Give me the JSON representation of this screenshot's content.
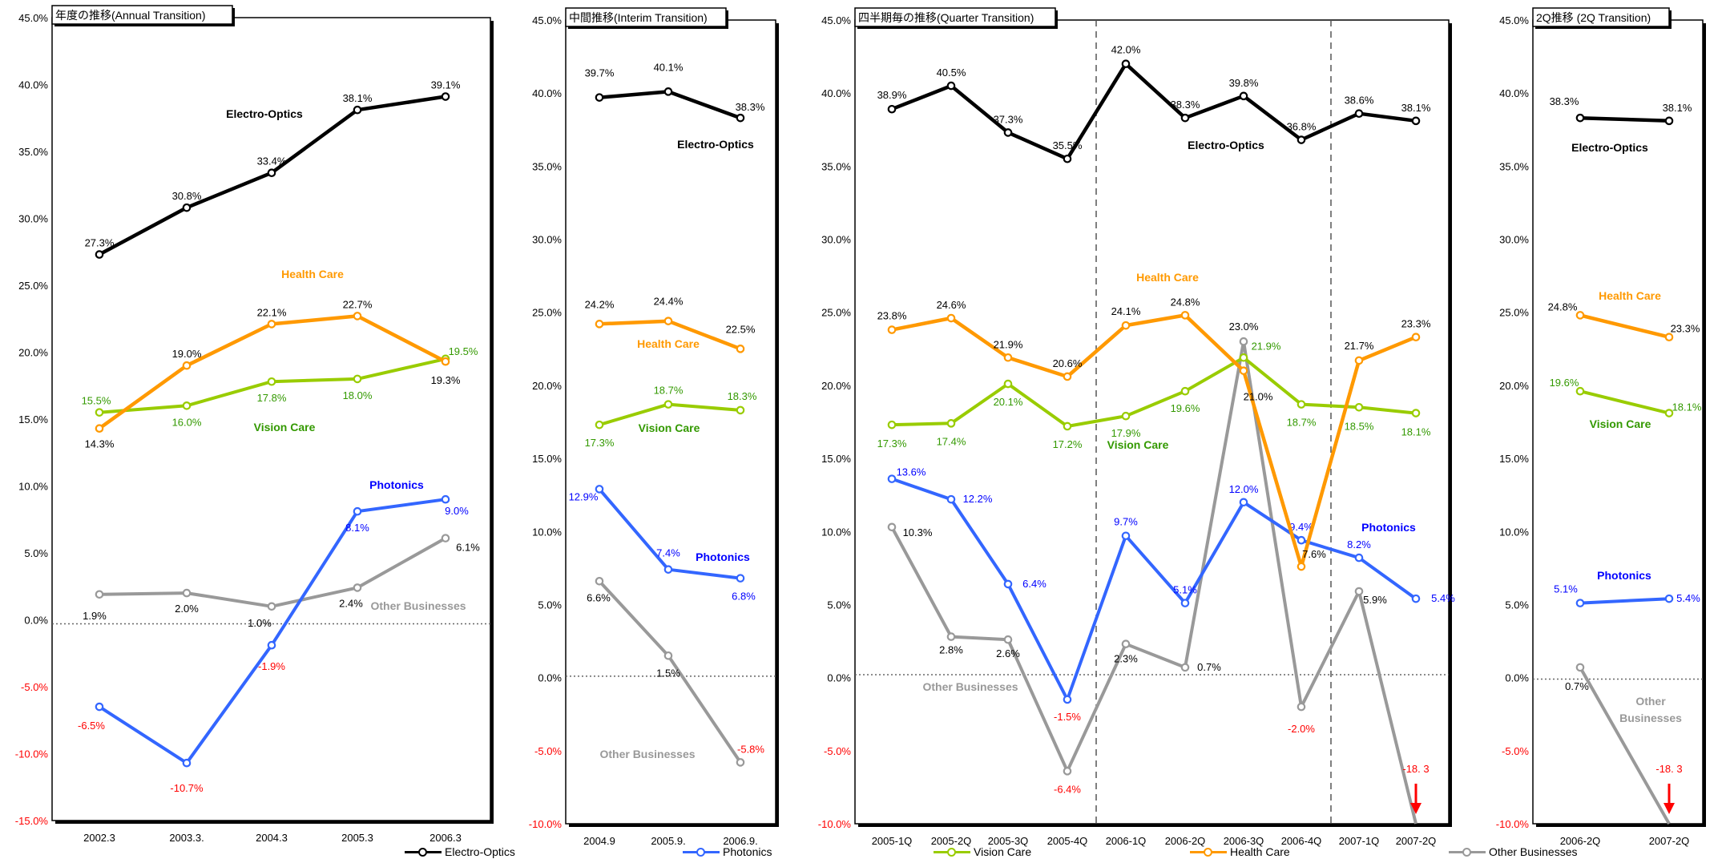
{
  "legend": [
    {
      "name": "Electro-Optics",
      "color": "#000000"
    },
    {
      "name": "Photonics",
      "color": "#3366ff"
    },
    {
      "name": "Vision Care",
      "color": "#99cc00"
    },
    {
      "name": "Health Care",
      "color": "#ff9900"
    },
    {
      "name": "Other Businesses",
      "color": "#999999"
    }
  ],
  "chart_data": [
    {
      "type": "line",
      "title": "年度の推移(Annual Transition)",
      "categories": [
        "2002.3",
        "2003.3.",
        "2004.3",
        "2005.3",
        "2006.3"
      ],
      "ylim": [
        -15,
        45
      ],
      "yticks": [
        "-15.0%",
        "-10.0%",
        "-5.0%",
        "0.0%",
        "5.0%",
        "10.0%",
        "15.0%",
        "20.0%",
        "25.0%",
        "30.0%",
        "35.0%",
        "40.0%",
        "45.0%"
      ],
      "zero_line": -0.3,
      "series": [
        {
          "name": "Electro-Optics",
          "values": [
            27.3,
            30.8,
            33.4,
            38.1,
            39.1
          ],
          "labels": [
            "27.3%",
            "30.8%",
            "33.4%",
            "38.1%",
            "39.1%"
          ]
        },
        {
          "name": "Health Care",
          "values": [
            14.3,
            19.0,
            22.1,
            22.7,
            19.3
          ],
          "labels": [
            "14.3%",
            "19.0%",
            "22.1%",
            "22.7%",
            "19.3%"
          ]
        },
        {
          "name": "Vision Care",
          "values": [
            15.5,
            16.0,
            17.8,
            18.0,
            19.5
          ],
          "labels": [
            "15.5%",
            "16.0%",
            "17.8%",
            "18.0%",
            "19.5%"
          ]
        },
        {
          "name": "Photonics",
          "values": [
            -6.5,
            -10.7,
            -1.9,
            8.1,
            9.0
          ],
          "labels": [
            "-6.5%",
            "-10.7%",
            "-1.9%",
            "8.1%",
            "9.0%"
          ]
        },
        {
          "name": "Other Businesses",
          "values": [
            1.9,
            2.0,
            1.0,
            2.4,
            6.1
          ],
          "labels": [
            "1.9%",
            "2.0%",
            "1.0%",
            "2.4%",
            "6.1%"
          ]
        }
      ],
      "annotations": [
        "Electro-Optics",
        "Health Care",
        "Vision Care",
        "Photonics",
        "Other Businesses"
      ]
    },
    {
      "type": "line",
      "title": "中間推移(Interim Transition)",
      "categories": [
        "2004.9",
        "2005.9.",
        "2006.9."
      ],
      "ylim": [
        -10,
        45
      ],
      "yticks": [
        "-10.0%",
        "-5.0%",
        "0.0%",
        "5.0%",
        "10.0%",
        "15.0%",
        "20.0%",
        "25.0%",
        "30.0%",
        "35.0%",
        "40.0%",
        "45.0%"
      ],
      "zero_line": 0.1,
      "series": [
        {
          "name": "Electro-Optics",
          "values": [
            39.7,
            40.1,
            38.3
          ],
          "labels": [
            "39.7%",
            "40.1%",
            "38.3%"
          ]
        },
        {
          "name": "Health Care",
          "values": [
            24.2,
            24.4,
            22.5
          ],
          "labels": [
            "24.2%",
            "24.4%",
            "22.5%"
          ]
        },
        {
          "name": "Vision Care",
          "values": [
            17.3,
            18.7,
            18.3
          ],
          "labels": [
            "17.3%",
            "18.7%",
            "18.3%"
          ]
        },
        {
          "name": "Photonics",
          "values": [
            12.9,
            7.4,
            6.8
          ],
          "labels": [
            "12.9%",
            "7.4%",
            "6.8%"
          ]
        },
        {
          "name": "Other Businesses",
          "values": [
            6.6,
            1.5,
            -5.8
          ],
          "labels": [
            "6.6%",
            "1.5%",
            "-5.8%"
          ]
        }
      ],
      "annotations": [
        "Electro-Optics",
        "Health Care",
        "Vision Care",
        "Photonics",
        "Other Businesses"
      ]
    },
    {
      "type": "line",
      "title": "四半期毎の推移(Quarter Transition)",
      "categories": [
        "2005-1Q",
        "2005-2Q",
        "2005-3Q",
        "2005-4Q",
        "2006-1Q",
        "2006-2Q",
        "2006-3Q",
        "2006-4Q",
        "2007-1Q",
        "2007-2Q"
      ],
      "ylim": [
        -10,
        45
      ],
      "yticks": [
        "-10.0%",
        "-5.0%",
        "0.0%",
        "5.0%",
        "10.0%",
        "15.0%",
        "20.0%",
        "25.0%",
        "30.0%",
        "35.0%",
        "40.0%",
        "45.0%"
      ],
      "zero_line": 0.2,
      "series": [
        {
          "name": "Electro-Optics",
          "values": [
            38.9,
            40.5,
            37.3,
            35.5,
            42.0,
            38.3,
            39.8,
            36.8,
            38.6,
            38.1
          ],
          "labels": [
            "38.9%",
            "40.5%",
            "37.3%",
            "35.5%",
            "42.0%",
            "38.3%",
            "39.8%",
            "36.8%",
            "38.6%",
            "38.1%"
          ]
        },
        {
          "name": "Health Care",
          "values": [
            23.8,
            24.6,
            21.9,
            20.6,
            24.1,
            24.8,
            21.0,
            7.6,
            21.7,
            23.3
          ],
          "labels": [
            "23.8%",
            "24.6%",
            "21.9%",
            "20.6%",
            "24.1%",
            "24.8%",
            "21.0%",
            "7.6%",
            "21.7%",
            "23.3%"
          ]
        },
        {
          "name": "Vision Care",
          "values": [
            17.3,
            17.4,
            20.1,
            17.2,
            17.9,
            19.6,
            21.9,
            18.7,
            18.5,
            18.1
          ],
          "labels": [
            "17.3%",
            "17.4%",
            "20.1%",
            "17.2%",
            "17.9%",
            "19.6%",
            "21.9%",
            "18.7%",
            "18.5%",
            "18.1%"
          ]
        },
        {
          "name": "Photonics",
          "values": [
            13.6,
            12.2,
            6.4,
            -1.5,
            9.7,
            5.1,
            12.0,
            9.4,
            8.2,
            5.4
          ],
          "labels": [
            "13.6%",
            "12.2%",
            "6.4%",
            "-1.5%",
            "9.7%",
            "5.1%",
            "12.0%",
            "9.4%",
            "8.2%",
            "5.4%"
          ]
        },
        {
          "name": "Other Businesses",
          "values": [
            10.3,
            2.8,
            2.6,
            -6.4,
            2.3,
            0.7,
            23.0,
            -2.0,
            5.9,
            -18.3
          ],
          "labels": [
            "10.3%",
            "2.8%",
            "2.6%",
            "-6.4%",
            "2.3%",
            "0.7%",
            "23.0%",
            "-2.0%",
            "5.9%",
            "-18. 3"
          ]
        }
      ],
      "annotations": [
        "Electro-Optics",
        "Health Care",
        "Vision Care",
        "Photonics",
        "Other Businesses"
      ]
    },
    {
      "type": "line",
      "title": "2Q推移 (2Q Transition)",
      "categories": [
        "2006-2Q",
        "2007-2Q"
      ],
      "ylim": [
        -10,
        45
      ],
      "yticks": [
        "-10.0%",
        "-5.0%",
        "0.0%",
        "5.0%",
        "10.0%",
        "15.0%",
        "20.0%",
        "25.0%",
        "30.0%",
        "35.0%",
        "40.0%",
        "45.0%"
      ],
      "zero_line": -0.1,
      "series": [
        {
          "name": "Electro-Optics",
          "values": [
            38.3,
            38.1
          ],
          "labels": [
            "38.3%",
            "38.1%"
          ]
        },
        {
          "name": "Health Care",
          "values": [
            24.8,
            23.3
          ],
          "labels": [
            "24.8%",
            "23.3%"
          ]
        },
        {
          "name": "Vision Care",
          "values": [
            19.6,
            18.1
          ],
          "labels": [
            "19.6%",
            "18.1%"
          ]
        },
        {
          "name": "Photonics",
          "values": [
            5.1,
            5.4
          ],
          "labels": [
            "5.1%",
            "5.4%"
          ]
        },
        {
          "name": "Other Businesses",
          "values": [
            0.7,
            -18.3
          ],
          "labels": [
            "0.7%",
            "-18. 3"
          ]
        }
      ],
      "annotations": [
        "Electro-Optics",
        "Health Care",
        "Vision Care",
        "Photonics",
        "Other Businesses"
      ]
    }
  ]
}
